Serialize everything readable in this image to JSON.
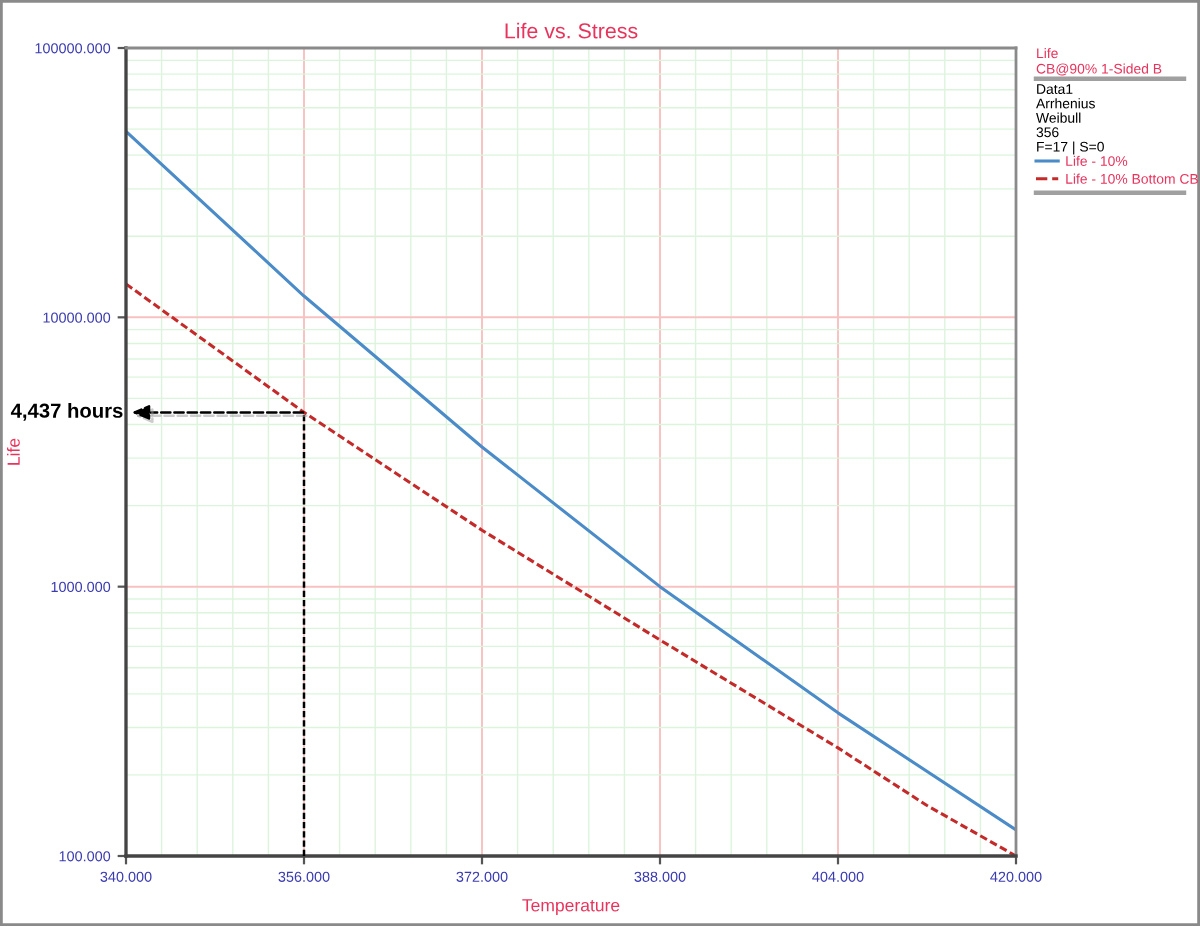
{
  "chart_data": {
    "type": "line",
    "title": "Life vs. Stress",
    "xlabel": "Temperature",
    "ylabel": "Life",
    "legend_title": "Life\nCB@90% 1-Sided B",
    "log": "y",
    "grid": true,
    "legend": "top right",
    "xlim": [
      340,
      420
    ],
    "xticks": [
      {
        "value": 340,
        "label": "340.000"
      },
      {
        "value": 356,
        "label": "356.000"
      },
      {
        "value": 372,
        "label": "372.000"
      },
      {
        "value": 388,
        "label": "388.000"
      },
      {
        "value": 404,
        "label": "404.000"
      },
      {
        "value": 420,
        "label": "420.000"
      }
    ],
    "ylim": [
      100,
      100000
    ],
    "yticks": [
      {
        "value": 100,
        "label": "100.000"
      },
      {
        "value": 1000,
        "label": "1000.000"
      },
      {
        "value": 10000,
        "label": "10000.000"
      },
      {
        "value": 100000,
        "label": "100000.000"
      }
    ],
    "series": [
      {
        "name": "Life - 10%",
        "color": "#4a8bc8",
        "line_style": "solid",
        "x": [
          340,
          356,
          372,
          388,
          404,
          420
        ],
        "values": [
          49000,
          12000,
          3300,
          1000,
          340,
          125
        ]
      },
      {
        "name": "Life - 10% Bottom CB",
        "color": "#c42a2a",
        "line_style": "dashed",
        "x": [
          340,
          356,
          372,
          388,
          404,
          412,
          420
        ],
        "values": [
          13300,
          4437,
          1620,
          634,
          252,
          154,
          100
        ]
      }
    ],
    "ref_lines": [
      {
        "axis": "x",
        "value": 356,
        "color": "#000000",
        "line_style": "dashed"
      }
    ],
    "annotations": [
      "Data1",
      "Arrhenius",
      "Weibull",
      "356",
      "F=17 | S=0",
      {
        "text": "4,437 hours",
        "x": 356,
        "y": 4437
      }
    ]
  }
}
